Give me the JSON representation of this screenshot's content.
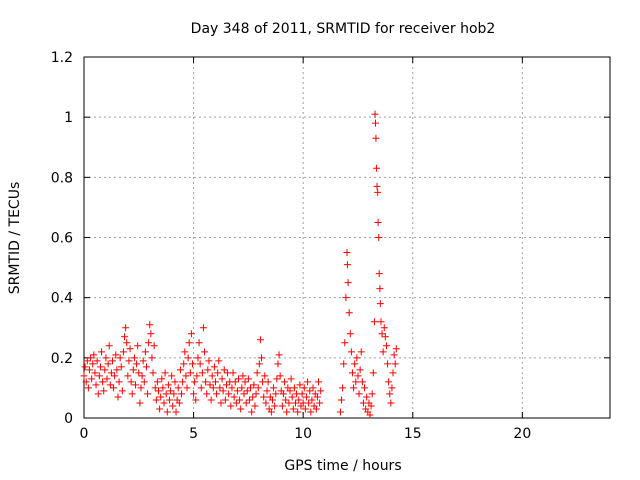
{
  "chart_data": {
    "type": "scatter",
    "title": "Day 348 of 2011, SRMTID for receiver hob2",
    "xlabel": "GPS time / hours",
    "ylabel": "SRMTID / TECUs",
    "xlim": [
      0,
      24
    ],
    "ylim": [
      0,
      1.2
    ],
    "xticks": [
      0,
      5,
      10,
      15,
      20
    ],
    "xtick_labels": [
      "0",
      "5",
      "10",
      "15",
      "20"
    ],
    "yticks": [
      0,
      0.2,
      0.4,
      0.6,
      0.8,
      1,
      1.2
    ],
    "ytick_labels": [
      "0",
      "0.2",
      "0.4",
      "0.6",
      "0.8",
      "1",
      "1.2"
    ],
    "grid": true,
    "marker": "+",
    "color": "#ff0000",
    "series": [
      {
        "name": "SRMTID",
        "points": [
          [
            0.0,
            0.14
          ],
          [
            0.05,
            0.17
          ],
          [
            0.1,
            0.12
          ],
          [
            0.15,
            0.19
          ],
          [
            0.2,
            0.1
          ],
          [
            0.25,
            0.16
          ],
          [
            0.3,
            0.2
          ],
          [
            0.35,
            0.13
          ],
          [
            0.4,
            0.18
          ],
          [
            0.45,
            0.21
          ],
          [
            0.5,
            0.15
          ],
          [
            0.55,
            0.11
          ],
          [
            0.6,
            0.19
          ],
          [
            0.65,
            0.08
          ],
          [
            0.7,
            0.14
          ],
          [
            0.75,
            0.17
          ],
          [
            0.8,
            0.22
          ],
          [
            0.85,
            0.12
          ],
          [
            0.9,
            0.09
          ],
          [
            0.95,
            0.16
          ],
          [
            1.0,
            0.2
          ],
          [
            1.05,
            0.13
          ],
          [
            1.1,
            0.18
          ],
          [
            1.15,
            0.24
          ],
          [
            1.2,
            0.11
          ],
          [
            1.25,
            0.15
          ],
          [
            1.3,
            0.19
          ],
          [
            1.35,
            0.1
          ],
          [
            1.4,
            0.14
          ],
          [
            1.45,
            0.21
          ],
          [
            1.5,
            0.16
          ],
          [
            1.55,
            0.07
          ],
          [
            1.6,
            0.12
          ],
          [
            1.65,
            0.2
          ],
          [
            1.7,
            0.17
          ],
          [
            1.75,
            0.09
          ],
          [
            1.8,
            0.22
          ],
          [
            1.85,
            0.27
          ],
          [
            1.9,
            0.3
          ],
          [
            1.95,
            0.25
          ],
          [
            2.0,
            0.14
          ],
          [
            2.05,
            0.19
          ],
          [
            2.1,
            0.23
          ],
          [
            2.15,
            0.12
          ],
          [
            2.2,
            0.08
          ],
          [
            2.25,
            0.16
          ],
          [
            2.3,
            0.2
          ],
          [
            2.35,
            0.11
          ],
          [
            2.4,
            0.18
          ],
          [
            2.45,
            0.24
          ],
          [
            2.5,
            0.15
          ],
          [
            2.55,
            0.05
          ],
          [
            2.6,
            0.1
          ],
          [
            2.65,
            0.14
          ],
          [
            2.7,
            0.19
          ],
          [
            2.75,
            0.12
          ],
          [
            2.8,
            0.22
          ],
          [
            2.85,
            0.17
          ],
          [
            2.9,
            0.08
          ],
          [
            2.95,
            0.25
          ],
          [
            3.0,
            0.31
          ],
          [
            3.05,
            0.28
          ],
          [
            3.1,
            0.2
          ],
          [
            3.15,
            0.15
          ],
          [
            3.2,
            0.24
          ],
          [
            3.25,
            0.1
          ],
          [
            3.3,
            0.06
          ],
          [
            3.35,
            0.12
          ],
          [
            3.4,
            0.09
          ],
          [
            3.45,
            0.03
          ],
          [
            3.5,
            0.07
          ],
          [
            3.55,
            0.13
          ],
          [
            3.6,
            0.1
          ],
          [
            3.65,
            0.05
          ],
          [
            3.7,
            0.15
          ],
          [
            3.75,
            0.08
          ],
          [
            3.8,
            0.02
          ],
          [
            3.85,
            0.11
          ],
          [
            3.9,
            0.06
          ],
          [
            3.95,
            0.09
          ],
          [
            4.0,
            0.14
          ],
          [
            4.05,
            0.04
          ],
          [
            4.1,
            0.08
          ],
          [
            4.15,
            0.12
          ],
          [
            4.2,
            0.02
          ],
          [
            4.25,
            0.06
          ],
          [
            4.3,
            0.1
          ],
          [
            4.35,
            0.05
          ],
          [
            4.4,
            0.16
          ],
          [
            4.45,
            0.08
          ],
          [
            4.5,
            0.12
          ],
          [
            4.55,
            0.18
          ],
          [
            4.6,
            0.22
          ],
          [
            4.65,
            0.14
          ],
          [
            4.7,
            0.1
          ],
          [
            4.75,
            0.2
          ],
          [
            4.8,
            0.25
          ],
          [
            4.85,
            0.15
          ],
          [
            4.9,
            0.28
          ],
          [
            4.95,
            0.18
          ],
          [
            5.0,
            0.08
          ],
          [
            5.05,
            0.12
          ],
          [
            5.1,
            0.06
          ],
          [
            5.15,
            0.14
          ],
          [
            5.2,
            0.2
          ],
          [
            5.25,
            0.25
          ],
          [
            5.3,
            0.18
          ],
          [
            5.35,
            0.1
          ],
          [
            5.4,
            0.15
          ],
          [
            5.45,
            0.3
          ],
          [
            5.5,
            0.22
          ],
          [
            5.55,
            0.12
          ],
          [
            5.6,
            0.08
          ],
          [
            5.65,
            0.16
          ],
          [
            5.7,
            0.19
          ],
          [
            5.75,
            0.11
          ],
          [
            5.8,
            0.06
          ],
          [
            5.85,
            0.14
          ],
          [
            5.9,
            0.1
          ],
          [
            5.95,
            0.17
          ],
          [
            6.0,
            0.12
          ],
          [
            6.05,
            0.08
          ],
          [
            6.1,
            0.15
          ],
          [
            6.15,
            0.19
          ],
          [
            6.2,
            0.1
          ],
          [
            6.25,
            0.05
          ],
          [
            6.3,
            0.13
          ],
          [
            6.35,
            0.09
          ],
          [
            6.4,
            0.16
          ],
          [
            6.45,
            0.06
          ],
          [
            6.5,
            0.11
          ],
          [
            6.55,
            0.15
          ],
          [
            6.6,
            0.08
          ],
          [
            6.65,
            0.12
          ],
          [
            6.7,
            0.04
          ],
          [
            6.75,
            0.1
          ],
          [
            6.8,
            0.15
          ],
          [
            6.85,
            0.07
          ],
          [
            6.9,
            0.12
          ],
          [
            6.95,
            0.05
          ],
          [
            7.0,
            0.09
          ],
          [
            7.05,
            0.13
          ],
          [
            7.1,
            0.06
          ],
          [
            7.15,
            0.03
          ],
          [
            7.2,
            0.1
          ],
          [
            7.25,
            0.14
          ],
          [
            7.3,
            0.08
          ],
          [
            7.35,
            0.12
          ],
          [
            7.4,
            0.05
          ],
          [
            7.45,
            0.09
          ],
          [
            7.5,
            0.13
          ],
          [
            7.55,
            0.06
          ],
          [
            7.6,
            0.1
          ],
          [
            7.65,
            0.02
          ],
          [
            7.7,
            0.07
          ],
          [
            7.75,
            0.11
          ],
          [
            7.8,
            0.04
          ],
          [
            7.85,
            0.08
          ],
          [
            7.9,
            0.15
          ],
          [
            7.95,
            0.1
          ],
          [
            8.0,
            0.18
          ],
          [
            8.05,
            0.26
          ],
          [
            8.1,
            0.2
          ],
          [
            8.15,
            0.12
          ],
          [
            8.2,
            0.07
          ],
          [
            8.25,
            0.14
          ],
          [
            8.3,
            0.05
          ],
          [
            8.35,
            0.09
          ],
          [
            8.4,
            0.12
          ],
          [
            8.45,
            0.03
          ],
          [
            8.5,
            0.07
          ],
          [
            8.55,
            0.02
          ],
          [
            8.6,
            0.06
          ],
          [
            8.65,
            0.1
          ],
          [
            8.7,
            0.04
          ],
          [
            8.75,
            0.08
          ],
          [
            8.8,
            0.13
          ],
          [
            8.85,
            0.18
          ],
          [
            8.9,
            0.21
          ],
          [
            8.95,
            0.14
          ],
          [
            9.0,
            0.09
          ],
          [
            9.05,
            0.04
          ],
          [
            9.1,
            0.08
          ],
          [
            9.15,
            0.12
          ],
          [
            9.2,
            0.06
          ],
          [
            9.25,
            0.02
          ],
          [
            9.3,
            0.1
          ],
          [
            9.35,
            0.05
          ],
          [
            9.4,
            0.09
          ],
          [
            9.45,
            0.13
          ],
          [
            9.5,
            0.07
          ],
          [
            9.55,
            0.03
          ],
          [
            9.6,
            0.1
          ],
          [
            9.65,
            0.05
          ],
          [
            9.7,
            0.08
          ],
          [
            9.75,
            0.02
          ],
          [
            9.8,
            0.06
          ],
          [
            9.85,
            0.11
          ],
          [
            9.9,
            0.04
          ],
          [
            9.95,
            0.08
          ],
          [
            10.0,
            0.05
          ],
          [
            10.05,
            0.1
          ],
          [
            10.1,
            0.03
          ],
          [
            10.15,
            0.07
          ],
          [
            10.2,
            0.12
          ],
          [
            10.25,
            0.05
          ],
          [
            10.3,
            0.09
          ],
          [
            10.35,
            0.02
          ],
          [
            10.4,
            0.06
          ],
          [
            10.45,
            0.1
          ],
          [
            10.5,
            0.04
          ],
          [
            10.55,
            0.08
          ],
          [
            10.6,
            0.03
          ],
          [
            10.65,
            0.07
          ],
          [
            10.7,
            0.12
          ],
          [
            10.75,
            0.05
          ],
          [
            10.8,
            0.09
          ],
          [
            11.7,
            0.02
          ],
          [
            11.75,
            0.06
          ],
          [
            11.8,
            0.1
          ],
          [
            11.85,
            0.18
          ],
          [
            11.9,
            0.25
          ],
          [
            11.95,
            0.4
          ],
          [
            12.0,
            0.55
          ],
          [
            12.02,
            0.51
          ],
          [
            12.05,
            0.45
          ],
          [
            12.1,
            0.35
          ],
          [
            12.15,
            0.28
          ],
          [
            12.2,
            0.22
          ],
          [
            12.25,
            0.15
          ],
          [
            12.3,
            0.1
          ],
          [
            12.35,
            0.18
          ],
          [
            12.4,
            0.12
          ],
          [
            12.45,
            0.2
          ],
          [
            12.5,
            0.14
          ],
          [
            12.55,
            0.08
          ],
          [
            12.6,
            0.16
          ],
          [
            12.65,
            0.22
          ],
          [
            12.7,
            0.12
          ],
          [
            12.75,
            0.05
          ],
          [
            12.8,
            0.1
          ],
          [
            12.85,
            0.03
          ],
          [
            12.9,
            0.07
          ],
          [
            12.95,
            0.02
          ],
          [
            13.0,
            0.05
          ],
          [
            13.05,
            0.01
          ],
          [
            13.1,
            0.04
          ],
          [
            13.15,
            0.08
          ],
          [
            13.2,
            0.15
          ],
          [
            13.25,
            0.32
          ],
          [
            13.28,
            1.01
          ],
          [
            13.3,
            0.98
          ],
          [
            13.32,
            0.93
          ],
          [
            13.35,
            0.83
          ],
          [
            13.37,
            0.77
          ],
          [
            13.4,
            0.75
          ],
          [
            13.42,
            0.65
          ],
          [
            13.45,
            0.6
          ],
          [
            13.47,
            0.48
          ],
          [
            13.5,
            0.43
          ],
          [
            13.52,
            0.38
          ],
          [
            13.55,
            0.32
          ],
          [
            13.6,
            0.28
          ],
          [
            13.65,
            0.22
          ],
          [
            13.7,
            0.3
          ],
          [
            13.75,
            0.27
          ],
          [
            13.8,
            0.24
          ],
          [
            13.85,
            0.18
          ],
          [
            13.9,
            0.12
          ],
          [
            13.95,
            0.08
          ],
          [
            14.0,
            0.05
          ],
          [
            14.05,
            0.1
          ],
          [
            14.1,
            0.15
          ],
          [
            14.15,
            0.21
          ],
          [
            14.2,
            0.18
          ],
          [
            14.25,
            0.23
          ]
        ]
      }
    ]
  }
}
